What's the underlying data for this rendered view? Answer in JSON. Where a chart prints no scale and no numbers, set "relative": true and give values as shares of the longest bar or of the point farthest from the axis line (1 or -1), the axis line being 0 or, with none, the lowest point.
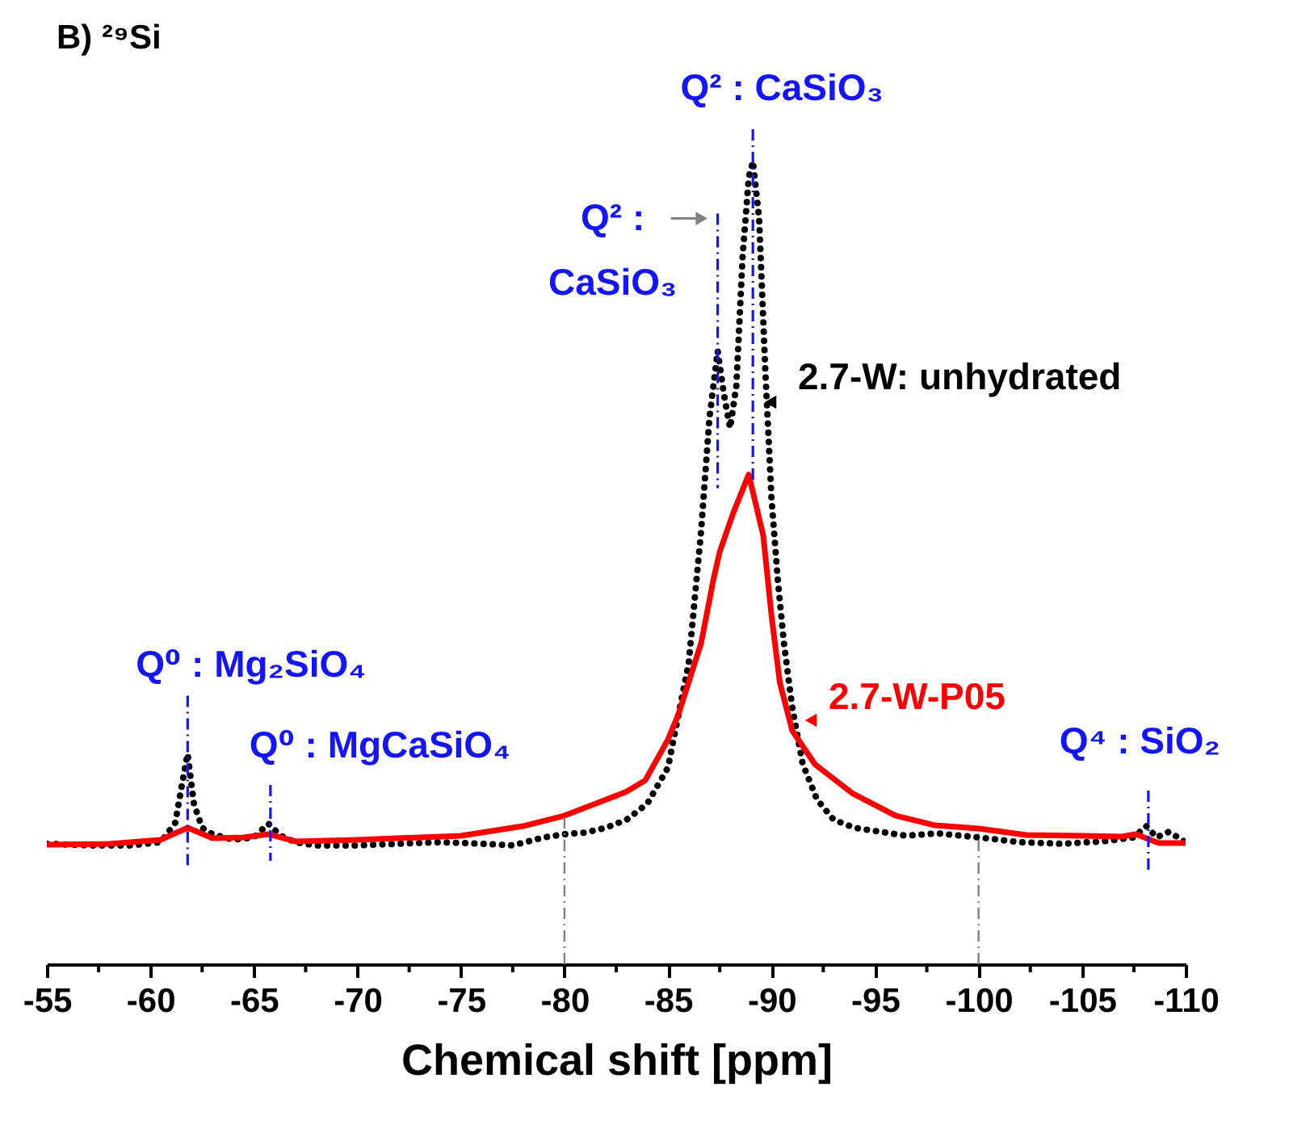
{
  "chart_data": {
    "type": "line",
    "title": "B) ²⁹Si",
    "xlabel": "Chemical shift [ppm]",
    "relative": true,
    "legend": "right",
    "grid": false,
    "xlim": [
      -55,
      -110
    ],
    "xticks": [
      -55,
      {
        "value": -57.5,
        "label": null
      },
      -60,
      {
        "value": -62.5,
        "label": null
      },
      -65,
      {
        "value": -67.5,
        "label": null
      },
      -70,
      {
        "value": -72.5,
        "label": null
      },
      -75,
      {
        "value": -77.5,
        "label": null
      },
      -80,
      {
        "value": -82.5,
        "label": null
      },
      -85,
      {
        "value": -87.5,
        "label": null
      },
      -90,
      {
        "value": -92.5,
        "label": null
      },
      -95,
      {
        "value": -97.5,
        "label": null
      },
      -100,
      {
        "value": -102.5,
        "label": null
      },
      -105,
      {
        "value": -107.5,
        "label": null
      },
      -110
    ],
    "series": [
      {
        "name": "2.7-W: unhydrated",
        "color": "#000000",
        "line_style": "dotted",
        "x": [
          -55,
          -57,
          -59,
          -60.5,
          -61.2,
          -61.5,
          -61.8,
          -62.1,
          -62.5,
          -63,
          -64,
          -65,
          -65.7,
          -66.3,
          -67,
          -68,
          -70,
          -72,
          -74,
          -76,
          -77.5,
          -79,
          -80,
          -81,
          -82,
          -83,
          -84,
          -85,
          -86,
          -86.6,
          -87.0,
          -87.4,
          -87.7,
          -88.0,
          -88.3,
          -88.6,
          -88.9,
          -89.1,
          -89.4,
          -89.7,
          -90.0,
          -90.3,
          -90.6,
          -91.0,
          -91.5,
          -92.2,
          -93,
          -94,
          -95,
          -96.5,
          -98,
          -100,
          -102,
          -104,
          -106,
          -107.5,
          -108.1,
          -108.6,
          -109.2,
          -110
        ],
        "values": [
          0.15,
          0.148,
          0.148,
          0.152,
          0.176,
          0.22,
          0.262,
          0.2,
          0.17,
          0.162,
          0.155,
          0.158,
          0.175,
          0.16,
          0.152,
          0.148,
          0.148,
          0.15,
          0.152,
          0.15,
          0.148,
          0.158,
          0.162,
          0.164,
          0.17,
          0.18,
          0.2,
          0.245,
          0.375,
          0.54,
          0.68,
          0.764,
          0.71,
          0.668,
          0.72,
          0.88,
          0.98,
          1.0,
          0.93,
          0.74,
          0.58,
          0.48,
          0.4,
          0.32,
          0.25,
          0.205,
          0.18,
          0.17,
          0.166,
          0.16,
          0.163,
          0.158,
          0.152,
          0.15,
          0.153,
          0.158,
          0.172,
          0.158,
          0.165,
          0.152
        ]
      },
      {
        "name": "2.7-W-P05",
        "color": "#ff0000",
        "line_style": "solid",
        "x": [
          -55,
          -58,
          -60.5,
          -61.8,
          -63,
          -64.5,
          -65.7,
          -67,
          -70,
          -75,
          -78,
          -80,
          -82,
          -83,
          -83.9,
          -85,
          -85.5,
          -86.6,
          -87.2,
          -87.5,
          -88.15,
          -88.9,
          -89.6,
          -90.0,
          -90.4,
          -91.0,
          -92.1,
          -93.9,
          -96.0,
          -97.9,
          -100,
          -102.3,
          -105,
          -106.9,
          -107.6,
          -108.7,
          -110
        ],
        "values": [
          0.149,
          0.15,
          0.155,
          0.17,
          0.157,
          0.158,
          0.162,
          0.153,
          0.155,
          0.16,
          0.172,
          0.185,
          0.205,
          0.215,
          0.229,
          0.28,
          0.311,
          0.4,
          0.48,
          0.514,
          0.562,
          0.61,
          0.534,
          0.434,
          0.351,
          0.291,
          0.249,
          0.213,
          0.185,
          0.173,
          0.169,
          0.161,
          0.16,
          0.159,
          0.162,
          0.151,
          0.151
        ]
      }
    ],
    "ref_lines": [
      {
        "axis": "x",
        "value": -80,
        "color": "#808080",
        "line_style": "dashdot"
      },
      {
        "axis": "x",
        "value": -100,
        "color": "#808080",
        "line_style": "dashdot"
      },
      {
        "axis": "x",
        "value": -61.8,
        "label": "Q⁰ : Mg₂SiO₄",
        "color": "#1414ff",
        "line_style": "dashdot"
      },
      {
        "axis": "x",
        "value": -65.8,
        "label": "Q⁰ : MgCaSiO₄",
        "color": "#1414ff",
        "line_style": "dashdot"
      },
      {
        "axis": "x",
        "value": -87.4,
        "label": "Q² :\nCaSiO₃",
        "color": "#1414ff",
        "line_style": "dashdot"
      },
      {
        "axis": "x",
        "value": -89.1,
        "label": "Q² : CaSiO₃",
        "color": "#1414ff",
        "line_style": "dashdot"
      },
      {
        "axis": "x",
        "value": -108.2,
        "label": "Q⁴ : SiO₂",
        "color": "#1414ff",
        "line_style": "dashdot"
      }
    ]
  }
}
